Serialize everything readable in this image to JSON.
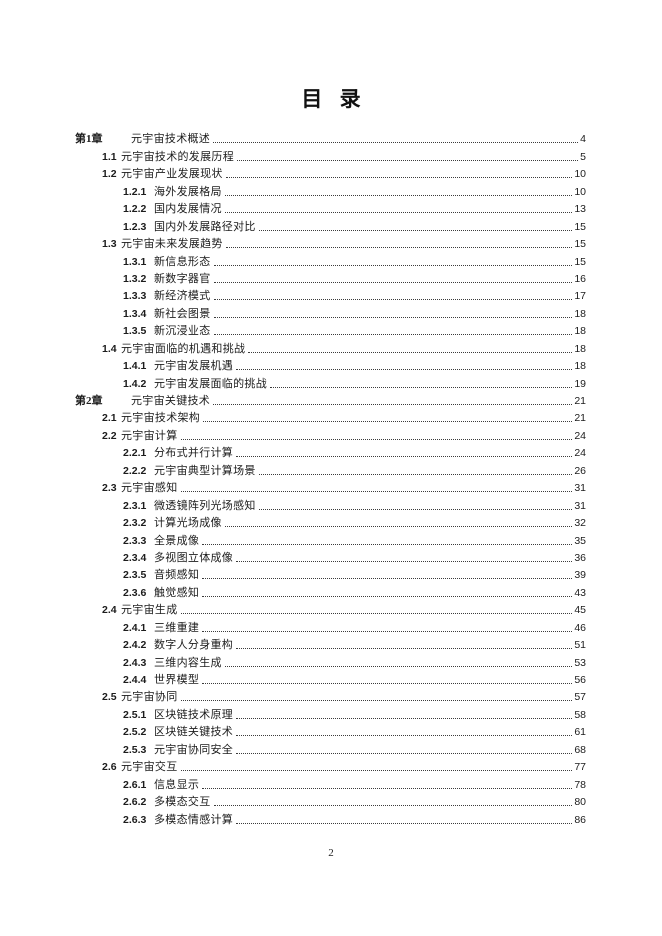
{
  "page": {
    "title": "目 录",
    "footer_page_number": "2"
  },
  "toc": {
    "entries": [
      {
        "level": 0,
        "num": "第1章",
        "title": "元宇宙技术概述",
        "page": "4"
      },
      {
        "level": 1,
        "num": "1.1",
        "title": "元宇宙技术的发展历程",
        "page": "5"
      },
      {
        "level": 1,
        "num": "1.2",
        "title": "元宇宙产业发展现状",
        "page": "10"
      },
      {
        "level": 2,
        "num": "1.2.1",
        "title": "海外发展格局",
        "page": "10"
      },
      {
        "level": 2,
        "num": "1.2.2",
        "title": "国内发展情况",
        "page": "13"
      },
      {
        "level": 2,
        "num": "1.2.3",
        "title": "国内外发展路径对比",
        "page": "15"
      },
      {
        "level": 1,
        "num": "1.3",
        "title": "元宇宙未来发展趋势",
        "page": "15"
      },
      {
        "level": 2,
        "num": "1.3.1",
        "title": "新信息形态",
        "page": "15"
      },
      {
        "level": 2,
        "num": "1.3.2",
        "title": "新数字器官",
        "page": "16"
      },
      {
        "level": 2,
        "num": "1.3.3",
        "title": "新经济模式",
        "page": "17"
      },
      {
        "level": 2,
        "num": "1.3.4",
        "title": "新社会图景",
        "page": "18"
      },
      {
        "level": 2,
        "num": "1.3.5",
        "title": "新沉浸业态",
        "page": "18"
      },
      {
        "level": 1,
        "num": "1.4",
        "title": "元宇宙面临的机遇和挑战",
        "page": "18"
      },
      {
        "level": 2,
        "num": "1.4.1",
        "title": "元宇宙发展机遇",
        "page": "18"
      },
      {
        "level": 2,
        "num": "1.4.2",
        "title": "元宇宙发展面临的挑战",
        "page": "19"
      },
      {
        "level": 0,
        "num": "第2章",
        "title": "元宇宙关键技术",
        "page": "21"
      },
      {
        "level": 1,
        "num": "2.1",
        "title": "元宇宙技术架构",
        "page": "21"
      },
      {
        "level": 1,
        "num": "2.2",
        "title": "元宇宙计算",
        "page": "24"
      },
      {
        "level": 2,
        "num": "2.2.1",
        "title": "分布式并行计算",
        "page": "24"
      },
      {
        "level": 2,
        "num": "2.2.2",
        "title": "元宇宙典型计算场景",
        "page": "26"
      },
      {
        "level": 1,
        "num": "2.3",
        "title": "元宇宙感知",
        "page": "31"
      },
      {
        "level": 2,
        "num": "2.3.1",
        "title": "微透镜阵列光场感知",
        "page": "31"
      },
      {
        "level": 2,
        "num": "2.3.2",
        "title": "计算光场成像",
        "page": "32"
      },
      {
        "level": 2,
        "num": "2.3.3",
        "title": "全景成像",
        "page": "35"
      },
      {
        "level": 2,
        "num": "2.3.4",
        "title": "多视图立体成像",
        "page": "36"
      },
      {
        "level": 2,
        "num": "2.3.5",
        "title": "音频感知",
        "page": "39"
      },
      {
        "level": 2,
        "num": "2.3.6",
        "title": "触觉感知",
        "page": "43"
      },
      {
        "level": 1,
        "num": "2.4",
        "title": "元宇宙生成",
        "page": "45"
      },
      {
        "level": 2,
        "num": "2.4.1",
        "title": "三维重建",
        "page": "46"
      },
      {
        "level": 2,
        "num": "2.4.2",
        "title": "数字人分身重构",
        "page": "51"
      },
      {
        "level": 2,
        "num": "2.4.3",
        "title": "三维内容生成",
        "page": "53"
      },
      {
        "level": 2,
        "num": "2.4.4",
        "title": "世界模型",
        "page": "56"
      },
      {
        "level": 1,
        "num": "2.5",
        "title": "元宇宙协同",
        "page": "57"
      },
      {
        "level": 2,
        "num": "2.5.1",
        "title": "区块链技术原理",
        "page": "58"
      },
      {
        "level": 2,
        "num": "2.5.2",
        "title": "区块链关键技术",
        "page": "61"
      },
      {
        "level": 2,
        "num": "2.5.3",
        "title": "元宇宙协同安全",
        "page": "68"
      },
      {
        "level": 1,
        "num": "2.6",
        "title": "元宇宙交互",
        "page": "77"
      },
      {
        "level": 2,
        "num": "2.6.1",
        "title": "信息显示",
        "page": "78"
      },
      {
        "level": 2,
        "num": "2.6.2",
        "title": "多模态交互",
        "page": "80"
      },
      {
        "level": 2,
        "num": "2.6.3",
        "title": "多模态情感计算",
        "page": "86"
      }
    ]
  }
}
